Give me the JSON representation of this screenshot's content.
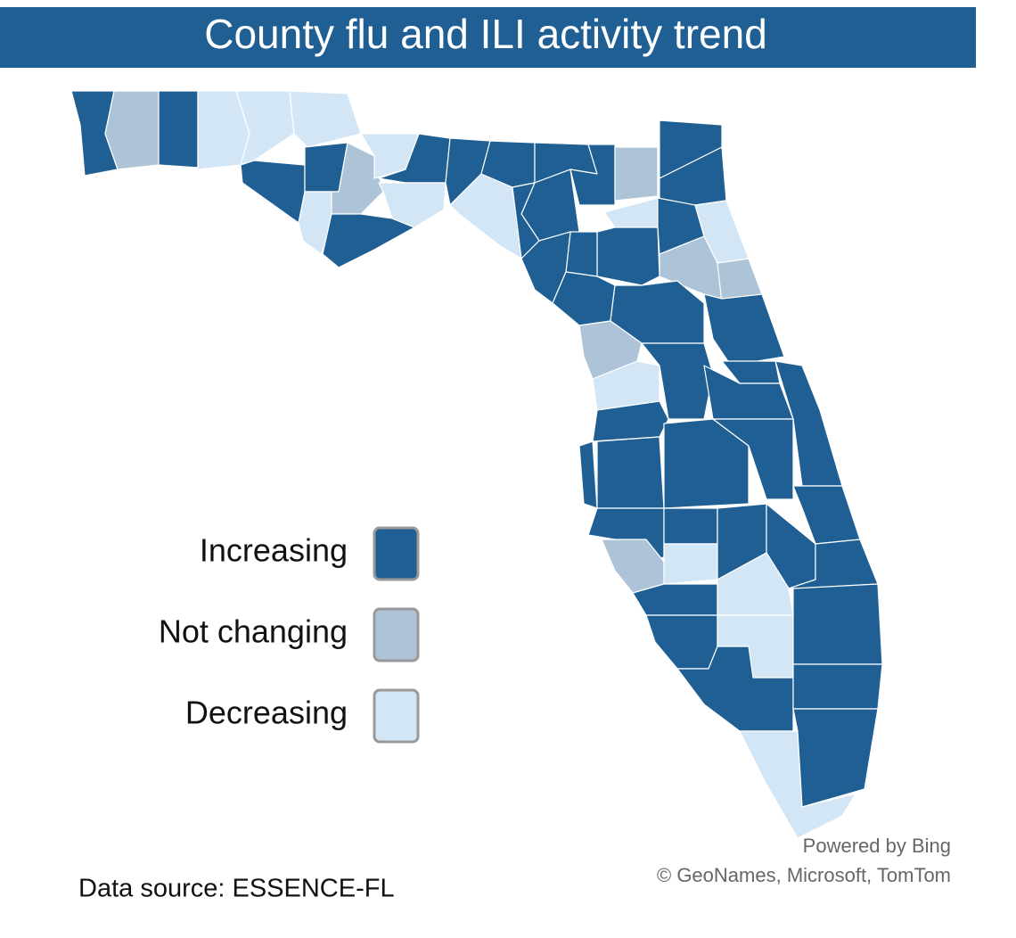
{
  "title": "County flu and ILI activity trend",
  "legend": [
    {
      "label": "Increasing",
      "color": "#1f5f94"
    },
    {
      "label": "Not changing",
      "color": "#adc4d8"
    },
    {
      "label": "Decreasing",
      "color": "#d3e6f5"
    }
  ],
  "attribution": [
    "Powered by Bing",
    "© GeoNames, Microsoft, TomTom"
  ],
  "source": "Data source: ESSENCE-FL"
}
